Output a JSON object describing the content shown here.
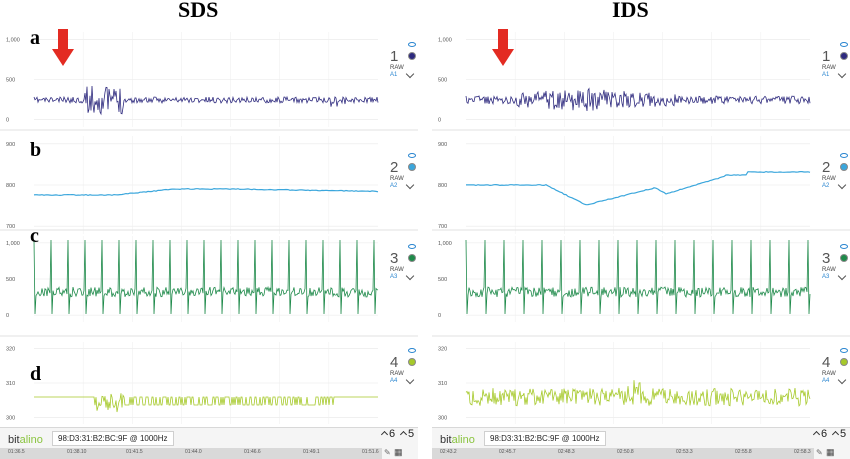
{
  "titles": {
    "left": "SDS",
    "right": "IDS"
  },
  "row_labels": [
    "a",
    "b",
    "c",
    "d"
  ],
  "channels": [
    {
      "num": "1",
      "raw": "RAW",
      "sub": "A1",
      "color": "#2e2a7e",
      "dot_color": "#2e2a7e",
      "ticks": [
        "1,000",
        "500",
        "0"
      ]
    },
    {
      "num": "2",
      "raw": "RAW",
      "sub": "A2",
      "color": "#3aa6dc",
      "dot_color": "#3aa6dc",
      "ticks": [
        "900",
        "800",
        "700"
      ]
    },
    {
      "num": "3",
      "raw": "RAW",
      "sub": "A3",
      "color": "#1e8a4a",
      "dot_color": "#1e8a4a",
      "ticks": [
        "1,000",
        "500",
        "0"
      ]
    },
    {
      "num": "4",
      "raw": "RAW",
      "sub": "A4",
      "color": "#a6c92a",
      "dot_color": "#a6c92a",
      "ticks": [
        "320",
        "310",
        "300"
      ]
    }
  ],
  "left_footer": {
    "logo_a": "bit",
    "logo_b": "alino",
    "device": "98:D3:31:B2:BC:9F @ 1000Hz",
    "times": [
      "01:36.5",
      "01:38.10",
      "01:41.5",
      "01:44.0",
      "01:46.6",
      "01:49.1",
      "01:51.6"
    ],
    "ctrl1": "6",
    "ctrl2": "5"
  },
  "right_footer": {
    "logo_a": "bit",
    "logo_b": "alino",
    "device": "98:D3:31:B2:BC:9F @ 1000Hz",
    "times": [
      "02:43.2",
      "02:45.7",
      "02:48.3",
      "02:50.8",
      "02:53.3",
      "02:55.8",
      "02:58.3"
    ],
    "ctrl1": "6",
    "ctrl2": "5"
  },
  "colors": {
    "arrow": "#e32b22",
    "grid": "#e8e8e8",
    "axis_text": "#555555"
  }
}
